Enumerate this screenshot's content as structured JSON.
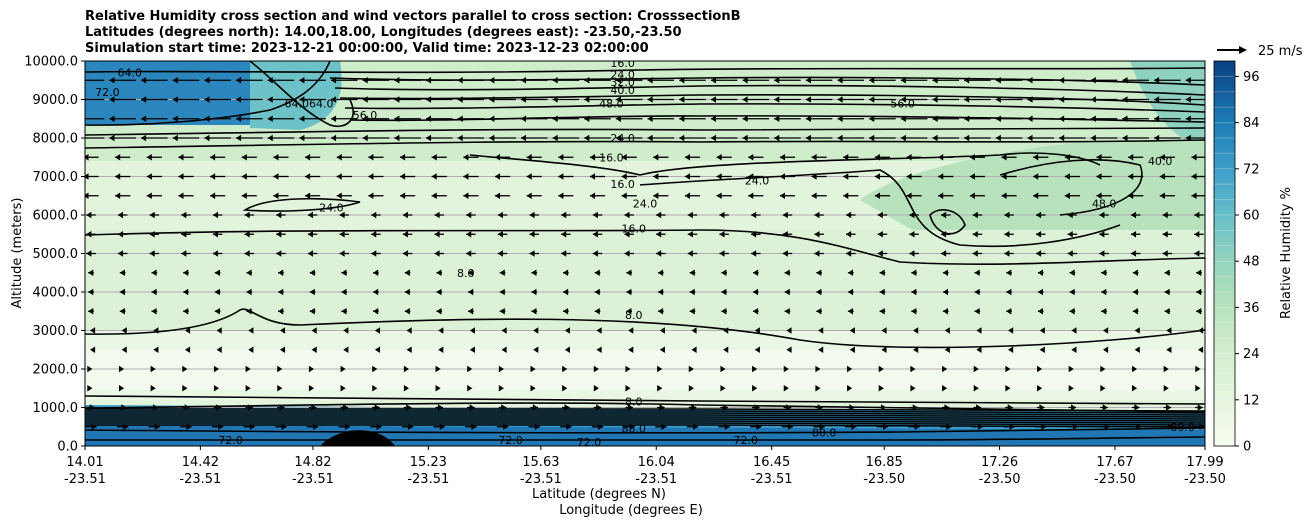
{
  "chart_data": {
    "type": "heatmap",
    "title_lines": [
      "Relative Humidity cross section and wind vectors parallel to cross section: CrosssectionB",
      "Latitudes (degrees north): 14.00,18.00, Longitudes (degrees east): -23.50,-23.50",
      "Simulation start time: 2023-12-21 00:00:00, Valid time: 2023-12-23 02:00:00"
    ],
    "ylabel": "Altitude (meters)",
    "xlabel_line1": "Latitude (degrees N)",
    "xlabel_line2": "Longitude (degrees E)",
    "ylim": [
      0,
      10000
    ],
    "yticks": [
      "0.0",
      "1000.0",
      "2000.0",
      "3000.0",
      "4000.0",
      "5000.0",
      "6000.0",
      "7000.0",
      "8000.0",
      "9000.0",
      "10000.0"
    ],
    "xticks_lat": [
      "14.01",
      "14.42",
      "14.82",
      "15.23",
      "15.63",
      "16.04",
      "16.45",
      "16.85",
      "17.26",
      "17.67",
      "17.99"
    ],
    "xticks_lon": [
      "-23.51",
      "-23.51",
      "-23.51",
      "-23.51",
      "-23.51",
      "-23.51",
      "-23.51",
      "-23.50",
      "-23.50",
      "-23.50",
      "-23.50"
    ],
    "grid": "horizontal",
    "colorbar": {
      "label": "Relative Humidity %",
      "ticks": [
        "0",
        "12",
        "24",
        "36",
        "48",
        "60",
        "72",
        "84",
        "96"
      ],
      "range": [
        0,
        100
      ],
      "low_color": "#f7fcf0",
      "mid_color": "#a8ddb5",
      "high_color": "#084081"
    },
    "quiver_key": "25 m/s",
    "contour_labels": [
      {
        "text": "72.0",
        "x": 0.02,
        "y": 9200
      },
      {
        "text": "64.0",
        "x": 0.04,
        "y": 9700
      },
      {
        "text": "16.0",
        "x": 0.48,
        "y": 9950
      },
      {
        "text": "24.0",
        "x": 0.48,
        "y": 9650
      },
      {
        "text": "32.0",
        "x": 0.48,
        "y": 9450
      },
      {
        "text": "40.0",
        "x": 0.48,
        "y": 9250
      },
      {
        "text": "48.0",
        "x": 0.47,
        "y": 8900
      },
      {
        "text": "64.064.0",
        "x": 0.2,
        "y": 8900
      },
      {
        "text": "56.0",
        "x": 0.25,
        "y": 8600
      },
      {
        "text": "24.0",
        "x": 0.48,
        "y": 8000
      },
      {
        "text": "16.0",
        "x": 0.47,
        "y": 7500
      },
      {
        "text": "16.0",
        "x": 0.48,
        "y": 6800
      },
      {
        "text": "16.0",
        "x": 0.49,
        "y": 5650
      },
      {
        "text": "24.0",
        "x": 0.22,
        "y": 6200
      },
      {
        "text": "24.0",
        "x": 0.5,
        "y": 6300
      },
      {
        "text": "24.0",
        "x": 0.6,
        "y": 6900
      },
      {
        "text": "56.0",
        "x": 0.73,
        "y": 8900
      },
      {
        "text": "40.0",
        "x": 0.96,
        "y": 7400
      },
      {
        "text": "48.0",
        "x": 0.91,
        "y": 6300
      },
      {
        "text": "8.0",
        "x": 0.34,
        "y": 4500
      },
      {
        "text": "8.0",
        "x": 0.49,
        "y": 3400
      },
      {
        "text": "8.0",
        "x": 0.49,
        "y": 1150
      },
      {
        "text": "88.0",
        "x": 0.49,
        "y": 450
      },
      {
        "text": "72.0",
        "x": 0.13,
        "y": 150
      },
      {
        "text": "72.0",
        "x": 0.38,
        "y": 150
      },
      {
        "text": "72.0",
        "x": 0.45,
        "y": 100
      },
      {
        "text": "72.0",
        "x": 0.59,
        "y": 150
      },
      {
        "text": "80.0",
        "x": 0.66,
        "y": 350
      },
      {
        "text": "80.0",
        "x": 0.98,
        "y": 500
      }
    ]
  }
}
